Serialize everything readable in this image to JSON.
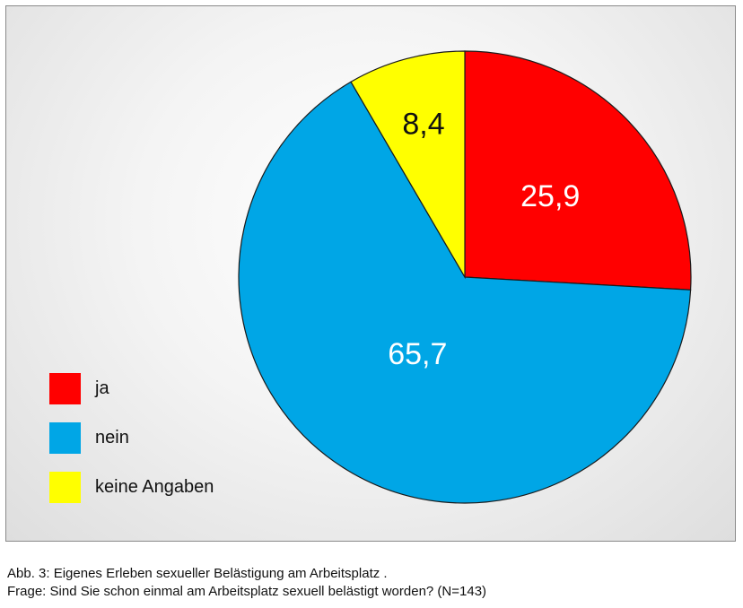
{
  "chart_data": {
    "type": "pie",
    "slices": [
      {
        "name": "ja",
        "value": 25.9,
        "label": "25,9",
        "color": "#ff0000",
        "label_color": "#ffffff"
      },
      {
        "name": "nein",
        "value": 65.7,
        "label": "65,7",
        "color": "#00a6e6",
        "label_color": "#ffffff"
      },
      {
        "name": "keine Angaben",
        "value": 8.4,
        "label": "8,4",
        "color": "#ffff00",
        "label_color": "#111111"
      }
    ],
    "legend": {
      "placement": "bottom-left",
      "entries": [
        "ja",
        "nein",
        "keine Angaben"
      ]
    }
  },
  "caption": {
    "line1": "Abb. 3: Eigenes Erleben sexueller Belästigung am Arbeitsplatz .",
    "line2": "Frage: Sind Sie schon einmal am Arbeitsplatz sexuell belästigt worden? (N=143)"
  }
}
